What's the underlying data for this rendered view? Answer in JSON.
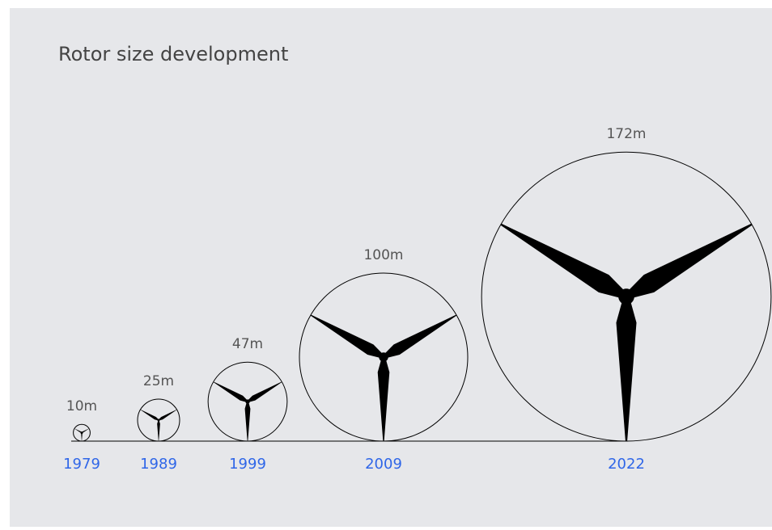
{
  "chart_data": {
    "type": "rotor",
    "title": "Rotor size development",
    "categories": [
      "1979",
      "1989",
      "1999",
      "2009",
      "2022"
    ],
    "values": [
      10,
      25,
      47,
      100,
      172
    ],
    "value_labels": [
      "10m",
      "25m",
      "47m",
      "100m",
      "172m"
    ],
    "color": "#000000",
    "category_color": "#2f66e8"
  }
}
